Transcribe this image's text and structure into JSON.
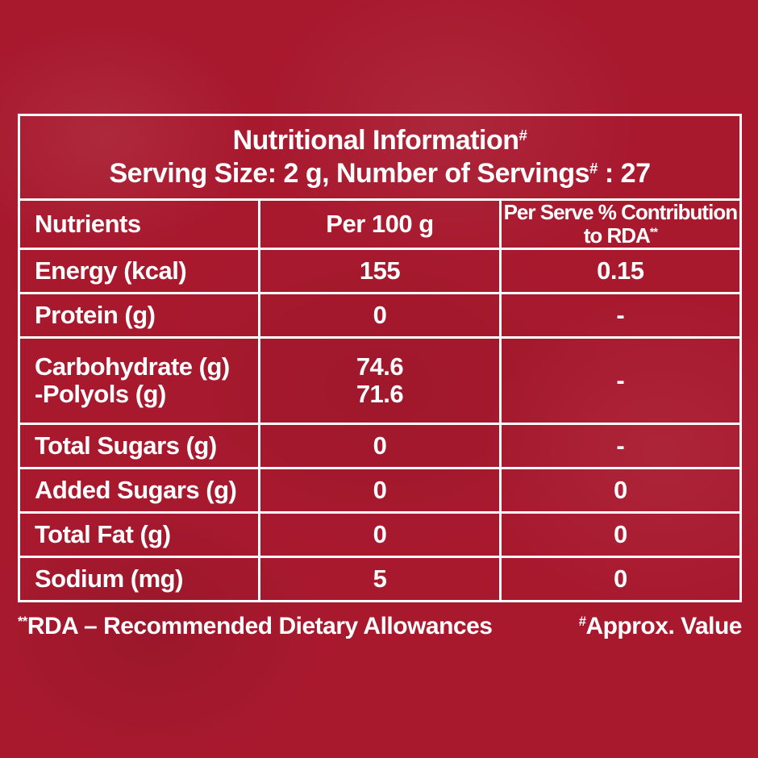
{
  "title": {
    "line1": "Nutritional Information",
    "line1_mark": "#",
    "line2_a": "Serving Size: 2 g, Number of Servings",
    "line2_mark": "#",
    "line2_b": " : 27"
  },
  "header": {
    "nutrients": "Nutrients",
    "per100": "Per 100 g",
    "rda": "Per Serve % Contribution to RDA",
    "rda_mark": "**"
  },
  "rows": [
    {
      "nutrient": "Energy (kcal)",
      "per100": "155",
      "rda": "0.15"
    },
    {
      "nutrient": "Protein (g)",
      "per100": "0",
      "rda": "-"
    },
    {
      "nutrient": "Carbohydrate (g)",
      "sub": "-Polyols (g)",
      "per100": "74.6",
      "sub_per100": "71.6",
      "rda": "-"
    },
    {
      "nutrient": "Total Sugars (g)",
      "per100": "0",
      "rda": "-"
    },
    {
      "nutrient": "Added Sugars (g)",
      "per100": "0",
      "rda": "0"
    },
    {
      "nutrient": "Total Fat (g)",
      "per100": "0",
      "rda": "0"
    },
    {
      "nutrient": "Sodium (mg)",
      "per100": "5",
      "rda": "0"
    }
  ],
  "footer": {
    "rda_mark": "**",
    "rda_note": "RDA – Recommended Dietary Allowances",
    "approx_mark": "#",
    "approx_note": "Approx. Value"
  },
  "colors": {
    "background": "#a8192e",
    "text": "#ffffff"
  }
}
